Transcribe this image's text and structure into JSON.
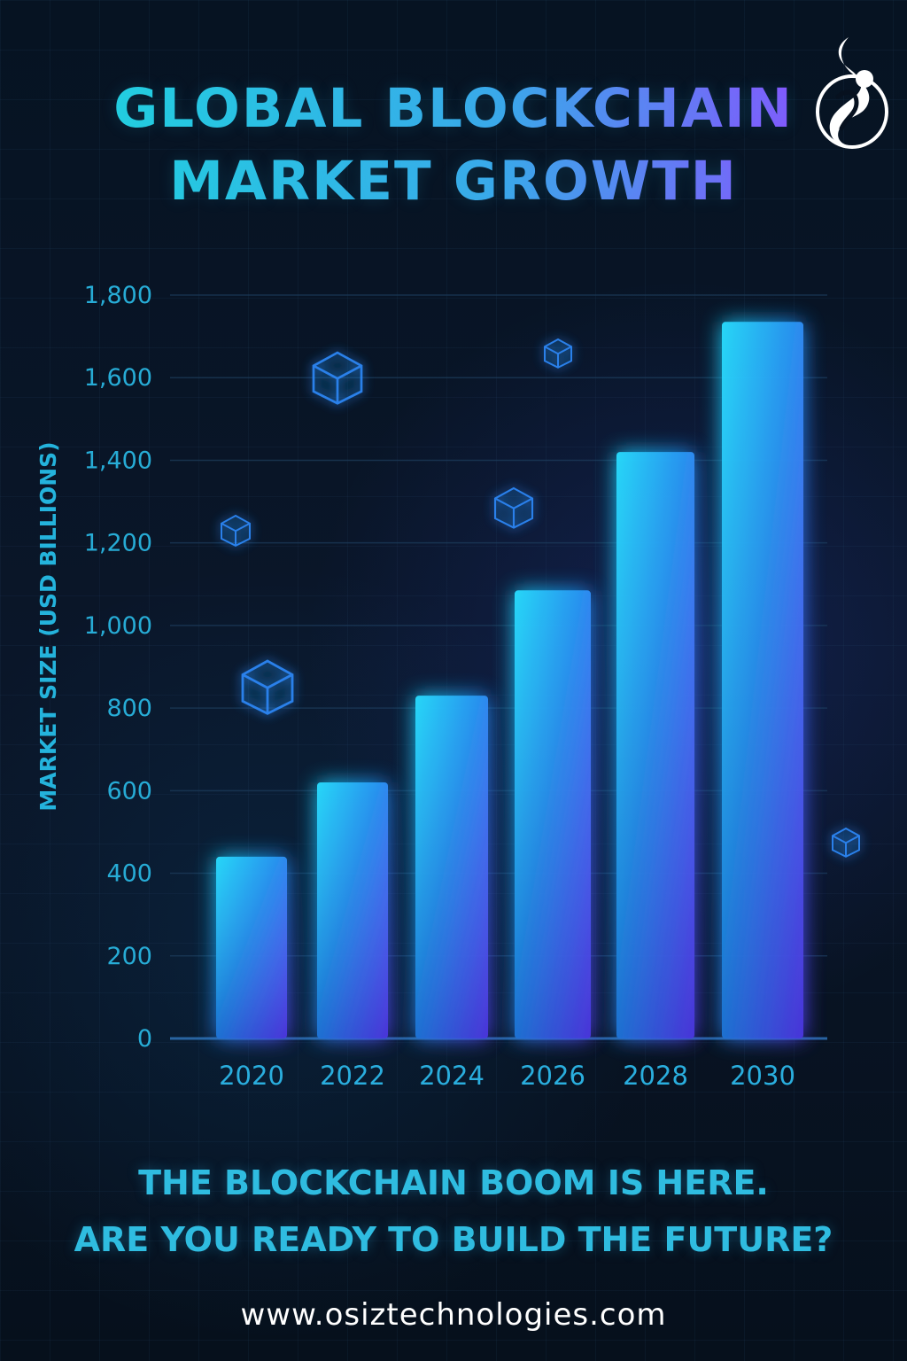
{
  "header": {
    "title_line1": "GLOBAL BLOCKCHAIN",
    "title_line2": "MARKET GROWTH"
  },
  "brand": {
    "logo_icon": "osiz-logo-icon"
  },
  "colors": {
    "background": "#07111f",
    "accent_cyan": "#2fbce0",
    "accent_purple": "#7a55ff",
    "bar_start": "#20c7ff",
    "bar_end": "#5c4dff",
    "grid": "#1c3958"
  },
  "chart_data": {
    "type": "bar",
    "categories": [
      "2020",
      "2022",
      "2024",
      "2026",
      "2028",
      "2030"
    ],
    "values": [
      440,
      620,
      830,
      1085,
      1420,
      1735
    ],
    "title": "GLOBAL BLOCKCHAIN MARKET GROWTH",
    "xlabel": "",
    "ylabel": "MARKET SIZE (USD BILLIONS)",
    "ylim": [
      0,
      1800
    ],
    "yticks": [
      "0",
      "200",
      "400",
      "600",
      "800",
      "1,000",
      "1,200",
      "1,400",
      "1,600",
      "1,800"
    ],
    "grid": true,
    "legend": "none"
  },
  "decorations": {
    "cube_icon": "cube-icon"
  },
  "footer": {
    "tagline_line1": "THE BLOCKCHAIN BOOM IS HERE.",
    "tagline_line2": "ARE YOU READY TO BUILD THE FUTURE?",
    "website": "www.osiztechnologies.com"
  }
}
